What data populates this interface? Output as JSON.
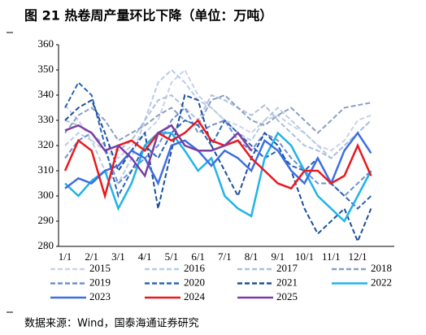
{
  "chart_data": {
    "type": "line",
    "title": "图 21  热卷周产量环比下降（单位：万吨）",
    "source": "数据来源：Wind，国泰海通证券研究",
    "categories": [
      "1/1",
      null,
      "2/1",
      null,
      "3/1",
      null,
      "4/1",
      null,
      "5/1",
      null,
      "6/1",
      null,
      "7/1",
      null,
      "8/1",
      null,
      "9/1",
      null,
      "10/1",
      null,
      "11/1",
      null,
      "12/1",
      null
    ],
    "ylim": [
      280,
      360
    ],
    "yticks": [
      280,
      290,
      300,
      310,
      320,
      330,
      340,
      350,
      360
    ],
    "series": [
      {
        "name": "2015",
        "color": "#c9d3e6",
        "dash": true,
        "values": [
          336,
          330,
          322,
          318,
          315,
          320,
          325,
          330,
          345,
          350,
          340,
          335,
          330,
          328,
          325,
          330,
          332,
          328,
          325,
          320,
          318,
          322,
          330,
          332
        ]
      },
      {
        "name": "2016",
        "color": "#b8cbe8",
        "dash": true,
        "values": [
          320,
          325,
          322,
          310,
          305,
          315,
          330,
          345,
          350,
          345,
          338,
          335,
          330,
          325,
          322,
          330,
          335,
          330,
          325,
          320,
          315,
          320,
          325,
          330
        ]
      },
      {
        "name": "2017",
        "color": "#aebfdc",
        "dash": true,
        "values": [
          330,
          328,
          325,
          320,
          318,
          322,
          330,
          338,
          340,
          335,
          330,
          340,
          338,
          335,
          332,
          336,
          330,
          325,
          320,
          318,
          315,
          320,
          325,
          330
        ]
      },
      {
        "name": "2018",
        "color": "#8a9fc4",
        "dash": true,
        "values": [
          325,
          332,
          335,
          330,
          322,
          325,
          328,
          332,
          335,
          330,
          328,
          338,
          340,
          335,
          330,
          328,
          332,
          335,
          330,
          325,
          330,
          335,
          336,
          337
        ]
      },
      {
        "name": "2019",
        "color": "#6f8fcf",
        "dash": true,
        "values": [
          315,
          322,
          325,
          318,
          305,
          310,
          315,
          320,
          330,
          335,
          325,
          328,
          330,
          322,
          318,
          325,
          322,
          315,
          310,
          305,
          305,
          300,
          305,
          310
        ]
      },
      {
        "name": "2020",
        "color": "#2a64b8",
        "dash": true,
        "values": [
          335,
          345,
          340,
          320,
          300,
          310,
          320,
          315,
          325,
          330,
          328,
          320,
          330,
          325,
          320,
          315,
          318,
          312,
          310,
          315,
          305,
          300,
          295,
          300
        ]
      },
      {
        "name": "2021",
        "color": "#1b4f9c",
        "dash": true,
        "values": [
          330,
          335,
          338,
          325,
          310,
          318,
          325,
          295,
          318,
          340,
          338,
          320,
          310,
          300,
          315,
          325,
          320,
          310,
          295,
          285,
          290,
          295,
          282,
          295
        ]
      },
      {
        "name": "2022",
        "color": "#21b3e8",
        "dash": false,
        "values": [
          305,
          300,
          306,
          310,
          295,
          305,
          320,
          325,
          325,
          318,
          310,
          315,
          300,
          295,
          292,
          315,
          325,
          320,
          310,
          300,
          295,
          290,
          300,
          310
        ]
      },
      {
        "name": "2023",
        "color": "#3d6fe0",
        "dash": false,
        "values": [
          303,
          307,
          305,
          310,
          312,
          318,
          315,
          305,
          320,
          322,
          318,
          312,
          318,
          315,
          310,
          322,
          318,
          310,
          305,
          315,
          305,
          318,
          325,
          317
        ]
      },
      {
        "name": "2024",
        "color": "#e8191e",
        "dash": false,
        "values": [
          310,
          322,
          318,
          300,
          320,
          322,
          318,
          325,
          322,
          325,
          330,
          322,
          320,
          322,
          315,
          310,
          305,
          303,
          310,
          310,
          305,
          308,
          320,
          308
        ]
      },
      {
        "name": "2025",
        "color": "#7a3fa0",
        "dash": false,
        "values": [
          326,
          328,
          325,
          318,
          320,
          315,
          308,
          325,
          328,
          320,
          318,
          318,
          320,
          325,
          318,
          null,
          null,
          null,
          null,
          null,
          null,
          null,
          null,
          null
        ]
      }
    ]
  }
}
